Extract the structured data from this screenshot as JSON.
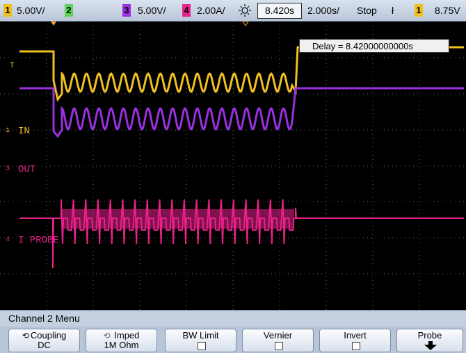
{
  "topbar": {
    "ch1": {
      "num": "1",
      "scale": "5.00V/",
      "color": "#f0c020"
    },
    "ch2": {
      "num": "2",
      "color": "#5ad25a"
    },
    "ch3": {
      "num": "3",
      "scale": "5.00V/",
      "color": "#9a30e0"
    },
    "ch4": {
      "num": "4",
      "scale": "2.00A/",
      "color": "#e8208a"
    },
    "trigger_position": "8.420s",
    "timebase": "2.000s/",
    "run_state": "Stop",
    "trigger_edge_symbol": "ł",
    "trigger_channel": "1",
    "trigger_level": "8.75V"
  },
  "screen": {
    "delay_readout": "Delay = 8.42000000000s",
    "labels": {
      "ch1_level_marker": "T",
      "ch1_name": "IN",
      "ch1_num": "1",
      "ch3_name": "OUT",
      "ch3_num": "3",
      "ch4_name": "I PROBE",
      "ch4_num": "4"
    }
  },
  "menu": {
    "title": "Channel 2  Menu",
    "softkeys": [
      {
        "label": "Coupling",
        "value": "DC",
        "kind": "rotary"
      },
      {
        "label": "Imped",
        "value": "1M Ohm",
        "kind": "rotary"
      },
      {
        "label": "BW Limit",
        "kind": "checkbox"
      },
      {
        "label": "Vernier",
        "kind": "checkbox"
      },
      {
        "label": "Invert",
        "kind": "checkbox"
      },
      {
        "label": "Probe",
        "kind": "submenu"
      }
    ]
  }
}
